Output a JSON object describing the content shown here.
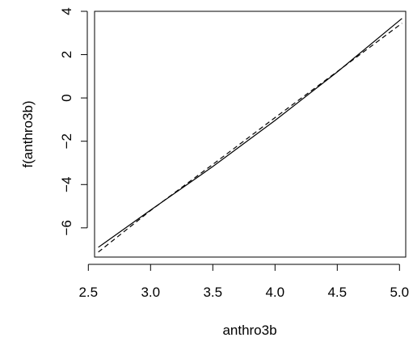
{
  "chart_data": {
    "type": "line",
    "title": "",
    "xlabel": "anthro3b",
    "ylabel": "f(anthro3b)",
    "xlim": [
      2.55,
      5.05
    ],
    "ylim": [
      -7.35,
      4.0
    ],
    "grid": false,
    "legend": "none",
    "x_ticks": [
      2.5,
      3.0,
      3.5,
      4.0,
      4.5,
      5.0
    ],
    "x_tick_labels": [
      "2.5",
      "3.0",
      "3.5",
      "4.0",
      "4.5",
      "5.0"
    ],
    "y_ticks": [
      -6,
      -4,
      -2,
      0,
      2,
      4
    ],
    "y_tick_labels": [
      "−6",
      "−4",
      "−2",
      "0",
      "2",
      "4"
    ],
    "series": [
      {
        "style": "solid",
        "color": "#000000",
        "x": [
          2.58,
          3.0,
          3.5,
          4.0,
          4.5,
          5.02
        ],
        "y": [
          -6.9,
          -5.18,
          -3.17,
          -1.04,
          1.2,
          3.67
        ]
      },
      {
        "style": "dashed",
        "color": "#000000",
        "x": [
          2.58,
          3.0,
          3.5,
          4.0,
          4.5,
          5.02
        ],
        "y": [
          -7.12,
          -5.2,
          -3.07,
          -0.91,
          1.22,
          3.45
        ]
      }
    ]
  }
}
